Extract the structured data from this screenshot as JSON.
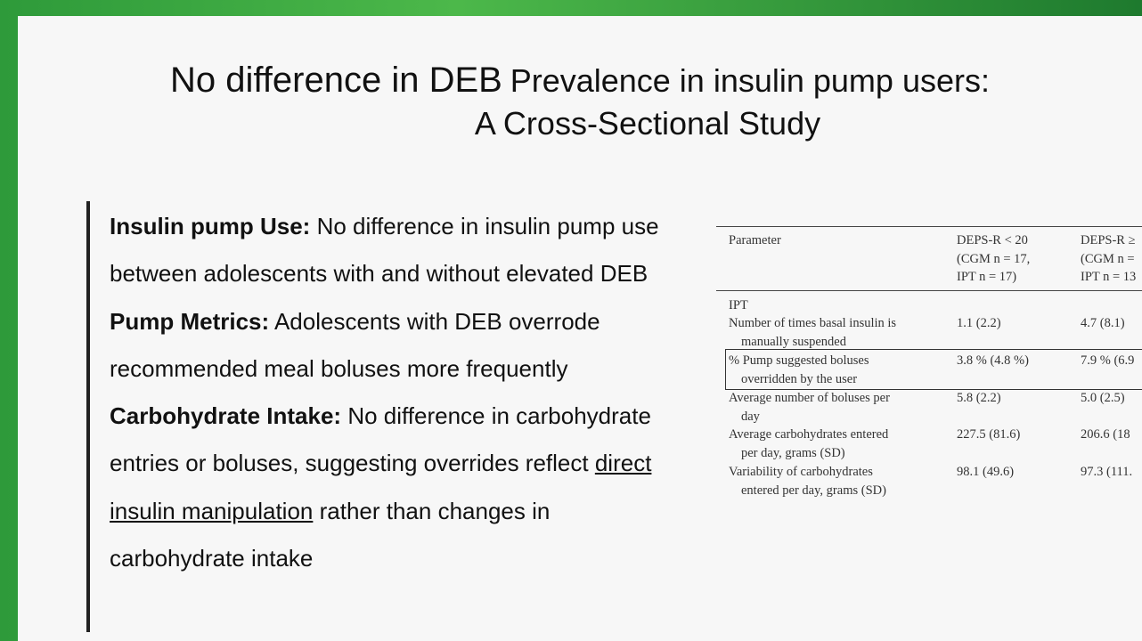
{
  "header": {
    "title_emphasis": "No difference in DEB",
    "title_rest": "Prevalence in insulin pump users:",
    "title_line2": "A Cross-Sectional Study"
  },
  "bullets": [
    {
      "label": "Insulin pump  Use:",
      "text": "No difference in insulin pump use between adolescents with and without elevated DEB"
    },
    {
      "label": "Pump Metrics:",
      "text": "Adolescents with DEB overrode recommended meal boluses more frequently"
    },
    {
      "label": "Carbohydrate Intake:",
      "text_before": "No difference in carbohydrate entries or boluses, suggesting overrides reflect",
      "underlined": "direct insulin manipulation",
      "text_after": "rather than changes in carbohydrate intake"
    }
  ],
  "table": {
    "header": [
      [
        "Parameter"
      ],
      [
        "DEPS-R < 20",
        "(CGM n = 17,",
        "IPT n = 17)"
      ],
      [
        "DEPS-R ≥",
        "(CGM n =",
        "IPT n = 13"
      ]
    ],
    "section": "IPT",
    "rows": [
      [
        [
          "Number of times basal insulin is",
          "manually suspended"
        ],
        "1.1 (2.2)",
        "4.7 (8.1)"
      ],
      [
        [
          "% Pump suggested boluses",
          "overridden by the user"
        ],
        "3.8 % (4.8 %)",
        "7.9 % (6.9"
      ],
      [
        [
          "Average number of boluses per",
          "day"
        ],
        "5.8 (2.2)",
        "5.0 (2.5)"
      ],
      [
        [
          "Average carbohydrates entered",
          "per day, grams (SD)"
        ],
        "227.5 (81.6)",
        "206.6 (18"
      ],
      [
        [
          "Variability of carbohydrates",
          "entered per day, grams (SD)"
        ],
        "98.1 (49.6)",
        "97.3 (111."
      ]
    ]
  }
}
